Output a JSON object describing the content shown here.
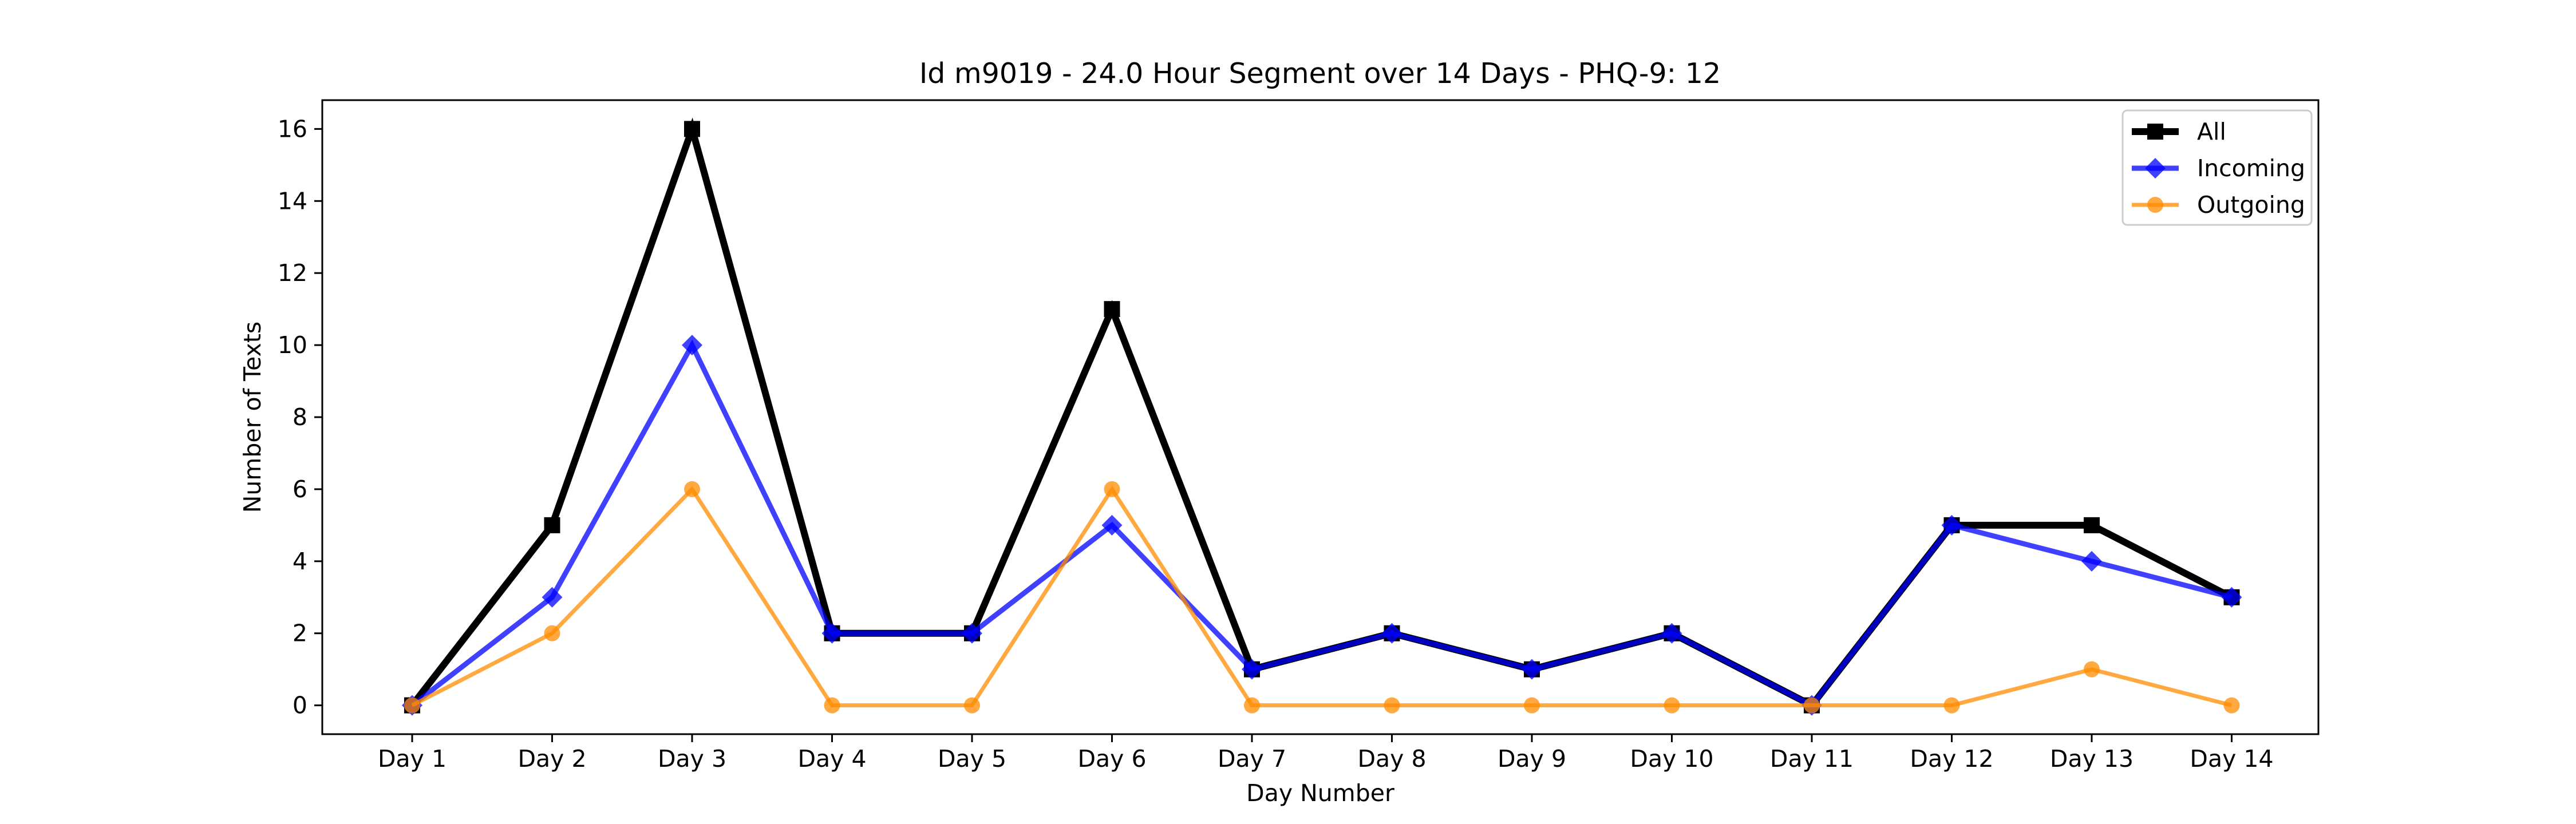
{
  "chart_data": {
    "type": "line",
    "title": "Id m9019 - 24.0 Hour Segment over 14 Days - PHQ-9: 12",
    "xlabel": "Day Number",
    "ylabel": "Number of Texts",
    "categories": [
      "Day 1",
      "Day 2",
      "Day 3",
      "Day 4",
      "Day 5",
      "Day 6",
      "Day 7",
      "Day 8",
      "Day 9",
      "Day 10",
      "Day 11",
      "Day 12",
      "Day 13",
      "Day 14"
    ],
    "ylim": [
      -0.8,
      16.8
    ],
    "yticks": [
      0,
      2,
      4,
      6,
      8,
      10,
      12,
      14,
      16
    ],
    "grid": false,
    "legend_position": "top-right",
    "series": [
      {
        "name": "All",
        "color": "#000000",
        "marker": "square",
        "values": [
          0,
          5,
          16,
          2,
          2,
          11,
          1,
          2,
          1,
          2,
          0,
          5,
          5,
          3
        ]
      },
      {
        "name": "Incoming",
        "color": "#0000ff",
        "marker": "diamond",
        "values": [
          0,
          3,
          10,
          2,
          2,
          5,
          1,
          2,
          1,
          2,
          0,
          5,
          4,
          3
        ]
      },
      {
        "name": "Outgoing",
        "color": "#ff8c00",
        "marker": "circle",
        "values": [
          0,
          2,
          6,
          0,
          0,
          6,
          0,
          0,
          0,
          0,
          0,
          0,
          1,
          0
        ]
      }
    ]
  }
}
